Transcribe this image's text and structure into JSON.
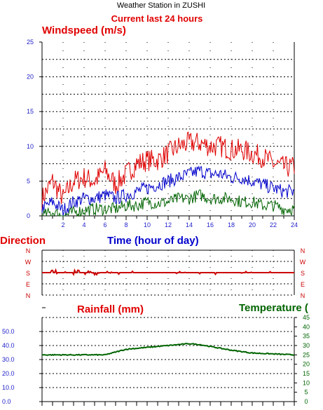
{
  "header": {
    "title": "Weather Station in ZUSHI",
    "subtitle": "Current last 24 hours"
  },
  "colors": {
    "red": "#e00000",
    "blue": "#0000cc",
    "green": "#006400",
    "axis": "#000000",
    "left_ticks": "#2222cc",
    "right_ticks": "#006400",
    "dir_ticks": "#cc0000"
  },
  "chart_data": [
    {
      "type": "line",
      "title": "Windspeed (m/s)",
      "xlabel": "Time (hour of day)",
      "xlim": [
        0,
        24
      ],
      "ylim": [
        0,
        25
      ],
      "x_ticks": [
        "2",
        "4",
        "6",
        "8",
        "10",
        "12",
        "14",
        "16",
        "18",
        "20",
        "22",
        "24"
      ],
      "y_ticks": [
        "0",
        "5",
        "10",
        "15",
        "20",
        "25"
      ],
      "grid": true,
      "series": [
        {
          "name": "",
          "color": "#e00000",
          "points": [
            [
              0,
              2.5
            ],
            [
              1,
              5
            ],
            [
              2,
              2.5
            ],
            [
              3,
              5
            ],
            [
              4,
              5.5
            ],
            [
              5,
              5
            ],
            [
              6,
              6.5
            ],
            [
              7,
              4.5
            ],
            [
              8,
              6
            ],
            [
              9,
              7.5
            ],
            [
              10,
              8
            ],
            [
              11,
              8
            ],
            [
              12,
              9
            ],
            [
              13,
              10
            ],
            [
              14,
              10.5
            ],
            [
              15,
              10.5
            ],
            [
              16,
              10
            ],
            [
              17,
              10
            ],
            [
              18,
              9.5
            ],
            [
              19,
              9.5
            ],
            [
              20,
              9
            ],
            [
              21,
              8.5
            ],
            [
              22,
              7.5
            ],
            [
              23,
              7
            ],
            [
              24,
              7
            ]
          ]
        },
        {
          "name": "",
          "color": "#0000cc",
          "points": [
            [
              0,
              1
            ],
            [
              1,
              2
            ],
            [
              2,
              0.8
            ],
            [
              3,
              2
            ],
            [
              4,
              2.5
            ],
            [
              5,
              2.5
            ],
            [
              6,
              3
            ],
            [
              7,
              2.5
            ],
            [
              8,
              3
            ],
            [
              9,
              3.5
            ],
            [
              10,
              4
            ],
            [
              11,
              4.5
            ],
            [
              12,
              5
            ],
            [
              13,
              5.5
            ],
            [
              14,
              6
            ],
            [
              15,
              6.5
            ],
            [
              16,
              6
            ],
            [
              17,
              6
            ],
            [
              18,
              5.5
            ],
            [
              19,
              5.5
            ],
            [
              20,
              5
            ],
            [
              21,
              4.5
            ],
            [
              22,
              4
            ],
            [
              23,
              3.5
            ],
            [
              24,
              3.5
            ]
          ]
        },
        {
          "name": "",
          "color": "#006400",
          "points": [
            [
              0,
              0
            ],
            [
              1,
              0.5
            ],
            [
              2,
              0
            ],
            [
              3,
              0.5
            ],
            [
              4,
              0.8
            ],
            [
              5,
              1
            ],
            [
              6,
              1
            ],
            [
              7,
              1
            ],
            [
              8,
              1.5
            ],
            [
              9,
              1.5
            ],
            [
              10,
              2
            ],
            [
              11,
              1.8
            ],
            [
              12,
              2
            ],
            [
              13,
              2.5
            ],
            [
              14,
              2.5
            ],
            [
              15,
              3
            ],
            [
              16,
              2.5
            ],
            [
              17,
              2.5
            ],
            [
              18,
              2.5
            ],
            [
              19,
              2
            ],
            [
              20,
              2
            ],
            [
              21,
              1.5
            ],
            [
              22,
              1.5
            ],
            [
              23,
              1
            ],
            [
              24,
              1
            ]
          ]
        }
      ]
    },
    {
      "type": "line",
      "title": "Direction",
      "xlim": [
        0,
        24
      ],
      "y_categories": [
        "N",
        "W",
        "S",
        "E",
        "N"
      ],
      "series": [
        {
          "name": "",
          "color": "#cc0000",
          "points": [
            [
              0,
              2
            ],
            [
              24,
              2
            ]
          ]
        }
      ]
    },
    {
      "type": "line",
      "title": "Rainfall (mm)",
      "title_right": "Temperature (",
      "xlim": [
        0,
        24
      ],
      "ylim": [
        0,
        60
      ],
      "y_ticks": [
        "0.0",
        "10.0",
        "20.0",
        "30.0",
        "40.0",
        "50.0"
      ],
      "y2lim": [
        0,
        45
      ],
      "y2_ticks": [
        "0",
        "5",
        "10",
        "15",
        "20",
        "25",
        "30",
        "35",
        "40",
        "45"
      ],
      "series": [
        {
          "name": "",
          "axis": "right",
          "color": "#006400",
          "points": [
            [
              0,
              25
            ],
            [
              6,
              25
            ],
            [
              7,
              26.5
            ],
            [
              8,
              28
            ],
            [
              10,
              29
            ],
            [
              12,
              30
            ],
            [
              14,
              31
            ],
            [
              15,
              30.5
            ],
            [
              16,
              29.5
            ],
            [
              18,
              27.5
            ],
            [
              20,
              26
            ],
            [
              22,
              25.5
            ],
            [
              24,
              25
            ]
          ]
        }
      ]
    }
  ]
}
